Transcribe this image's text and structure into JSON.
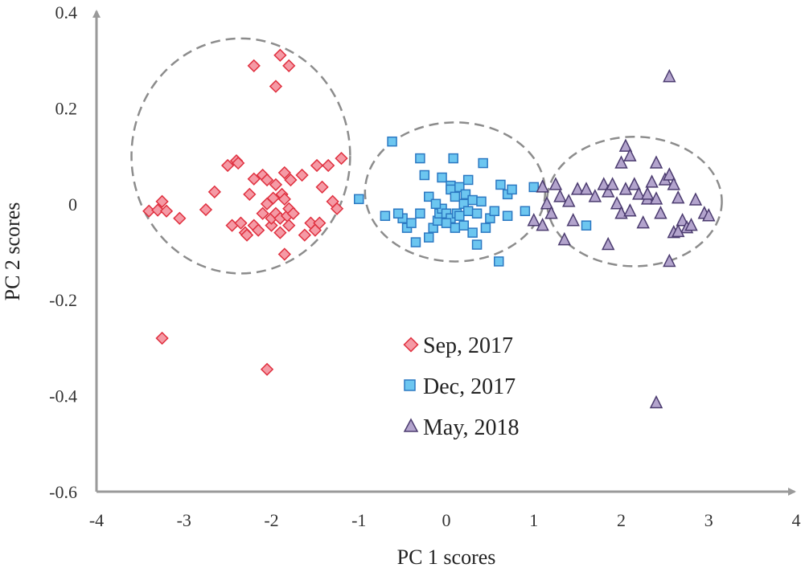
{
  "chart_data": {
    "type": "scatter",
    "xlabel": "PC 1 scores",
    "ylabel": "PC 2 scores",
    "xlim": [
      -4,
      4
    ],
    "ylim": [
      -0.6,
      0.4
    ],
    "x_ticks": [
      -4,
      -3,
      -2,
      -1,
      0,
      1,
      2,
      3,
      4
    ],
    "x_tick_labels": [
      "-4",
      "-3",
      "-2",
      "-1",
      "0",
      "1",
      "2",
      "3",
      "4"
    ],
    "y_ticks": [
      0.4,
      0.2,
      0,
      -0.2,
      -0.4,
      -0.6
    ],
    "y_tick_labels": [
      "0.4",
      "0.2",
      "0",
      "-0.2",
      "-0.4",
      "-0.6"
    ],
    "grid": false,
    "legend_position": "center",
    "colors": {
      "axis": "#9a9a9a",
      "ellipse": "#8c8c8c"
    },
    "series": [
      {
        "name": "Sep, 2017",
        "marker": "diamond",
        "fill": "#f59aa5",
        "stroke": "#e0303f",
        "points": [
          [
            -2.2,
            0.288
          ],
          [
            -1.9,
            0.31
          ],
          [
            -1.8,
            0.288
          ],
          [
            -1.95,
            0.245
          ],
          [
            -3.4,
            -0.015
          ],
          [
            -3.3,
            -0.013
          ],
          [
            -3.25,
            0.005
          ],
          [
            -3.2,
            -0.015
          ],
          [
            -3.05,
            -0.03
          ],
          [
            -2.75,
            -0.012
          ],
          [
            -2.65,
            0.025
          ],
          [
            -2.5,
            0.08
          ],
          [
            -2.4,
            0.09
          ],
          [
            -2.38,
            0.085
          ],
          [
            -2.45,
            -0.045
          ],
          [
            -2.35,
            -0.04
          ],
          [
            -2.3,
            -0.06
          ],
          [
            -2.28,
            -0.065
          ],
          [
            -2.2,
            0.052
          ],
          [
            -2.25,
            0.02
          ],
          [
            -2.2,
            -0.045
          ],
          [
            -2.15,
            -0.055
          ],
          [
            -2.1,
            0.06
          ],
          [
            -2.1,
            -0.02
          ],
          [
            -2.05,
            0.05
          ],
          [
            -2.05,
            0.0
          ],
          [
            -2.0,
            -0.045
          ],
          [
            -2.0,
            -0.03
          ],
          [
            -1.98,
            0.012
          ],
          [
            -1.95,
            0.04
          ],
          [
            -1.95,
            -0.02
          ],
          [
            -1.9,
            -0.06
          ],
          [
            -1.9,
            -0.03
          ],
          [
            -1.88,
            0.02
          ],
          [
            -1.85,
            0.065
          ],
          [
            -1.85,
            0.01
          ],
          [
            -1.82,
            -0.025
          ],
          [
            -1.8,
            -0.01
          ],
          [
            -1.8,
            -0.045
          ],
          [
            -1.78,
            0.05
          ],
          [
            -1.75,
            -0.02
          ],
          [
            -1.65,
            0.06
          ],
          [
            -1.62,
            -0.065
          ],
          [
            -1.55,
            -0.04
          ],
          [
            -1.5,
            -0.055
          ],
          [
            -1.48,
            0.08
          ],
          [
            -1.45,
            -0.04
          ],
          [
            -1.42,
            0.035
          ],
          [
            -1.35,
            0.08
          ],
          [
            -1.3,
            0.005
          ],
          [
            -1.25,
            -0.01
          ],
          [
            -1.2,
            0.095
          ],
          [
            -1.85,
            -0.105
          ],
          [
            -3.25,
            -0.28
          ],
          [
            -2.05,
            -0.345
          ]
        ]
      },
      {
        "name": "Dec, 2017",
        "marker": "square",
        "fill": "#6cc6f0",
        "stroke": "#2b78c2",
        "points": [
          [
            -1.0,
            0.01
          ],
          [
            -0.62,
            0.13
          ],
          [
            -0.5,
            -0.03
          ],
          [
            -0.45,
            -0.05
          ],
          [
            -0.3,
            0.095
          ],
          [
            -0.35,
            -0.08
          ],
          [
            -0.25,
            0.06
          ],
          [
            -0.2,
            0.015
          ],
          [
            -0.2,
            -0.07
          ],
          [
            -0.15,
            -0.05
          ],
          [
            -0.1,
            -0.035
          ],
          [
            -0.08,
            -0.02
          ],
          [
            -0.05,
            -0.01
          ],
          [
            0.0,
            -0.02
          ],
          [
            -0.05,
            0.055
          ],
          [
            0.05,
            0.038
          ],
          [
            0.05,
            0.03
          ],
          [
            0.05,
            -0.03
          ],
          [
            0.08,
            0.095
          ],
          [
            0.1,
            0.015
          ],
          [
            0.1,
            -0.05
          ],
          [
            0.12,
            -0.02
          ],
          [
            0.15,
            0.035
          ],
          [
            0.2,
            0.0
          ],
          [
            0.2,
            -0.045
          ],
          [
            0.22,
            0.02
          ],
          [
            0.25,
            0.05
          ],
          [
            0.25,
            -0.015
          ],
          [
            0.3,
            -0.06
          ],
          [
            0.3,
            0.008
          ],
          [
            0.35,
            -0.02
          ],
          [
            0.4,
            0.005
          ],
          [
            0.42,
            0.085
          ],
          [
            0.45,
            -0.05
          ],
          [
            0.5,
            -0.03
          ],
          [
            0.55,
            -0.015
          ],
          [
            0.6,
            -0.12
          ],
          [
            0.62,
            0.04
          ],
          [
            0.7,
            -0.025
          ],
          [
            0.7,
            0.02
          ],
          [
            0.75,
            0.03
          ],
          [
            -0.7,
            -0.025
          ],
          [
            -0.55,
            -0.02
          ],
          [
            -0.4,
            -0.04
          ],
          [
            -0.3,
            -0.02
          ],
          [
            -0.12,
            0.0
          ],
          [
            0.0,
            -0.04
          ],
          [
            0.15,
            -0.025
          ],
          [
            0.35,
            -0.085
          ],
          [
            0.9,
            -0.015
          ],
          [
            1.0,
            0.035
          ],
          [
            1.6,
            -0.045
          ]
        ]
      },
      {
        "name": "May, 2018",
        "marker": "triangle",
        "fill": "#b3a4cd",
        "stroke": "#4b3b6f",
        "points": [
          [
            2.55,
            0.265
          ],
          [
            1.0,
            -0.035
          ],
          [
            1.1,
            0.035
          ],
          [
            1.15,
            0.0
          ],
          [
            1.2,
            -0.02
          ],
          [
            1.25,
            0.04
          ],
          [
            1.3,
            0.015
          ],
          [
            1.35,
            -0.075
          ],
          [
            1.4,
            0.005
          ],
          [
            1.45,
            -0.035
          ],
          [
            1.5,
            0.03
          ],
          [
            1.6,
            0.03
          ],
          [
            1.7,
            0.015
          ],
          [
            1.8,
            0.04
          ],
          [
            1.85,
            0.025
          ],
          [
            1.9,
            0.04
          ],
          [
            1.95,
            0.0
          ],
          [
            2.0,
            0.085
          ],
          [
            2.0,
            -0.02
          ],
          [
            2.05,
            0.12
          ],
          [
            2.05,
            0.03
          ],
          [
            2.1,
            0.1
          ],
          [
            2.1,
            -0.015
          ],
          [
            2.15,
            0.04
          ],
          [
            2.2,
            0.02
          ],
          [
            2.25,
            -0.04
          ],
          [
            2.3,
            0.01
          ],
          [
            2.35,
            0.045
          ],
          [
            2.4,
            0.085
          ],
          [
            2.4,
            0.01
          ],
          [
            2.45,
            -0.02
          ],
          [
            2.5,
            0.05
          ],
          [
            2.55,
            0.06
          ],
          [
            2.6,
            0.04
          ],
          [
            2.6,
            -0.06
          ],
          [
            2.65,
            0.012
          ],
          [
            2.7,
            -0.035
          ],
          [
            2.75,
            -0.05
          ],
          [
            2.8,
            -0.045
          ],
          [
            2.85,
            0.008
          ],
          [
            2.95,
            -0.02
          ],
          [
            3.0,
            -0.025
          ],
          [
            2.55,
            -0.12
          ],
          [
            2.4,
            -0.415
          ],
          [
            1.1,
            -0.045
          ],
          [
            2.3,
            0.02
          ],
          [
            2.65,
            -0.058
          ],
          [
            1.85,
            -0.085
          ]
        ]
      }
    ],
    "ellipses": [
      {
        "cx": -2.35,
        "cy": 0.1,
        "rx": 1.25,
        "ry": 0.245
      },
      {
        "cx": 0.1,
        "cy": 0.025,
        "rx": 1.03,
        "ry": 0.145
      },
      {
        "cx": 2.15,
        "cy": 0.005,
        "rx": 1.0,
        "ry": 0.135
      }
    ]
  }
}
